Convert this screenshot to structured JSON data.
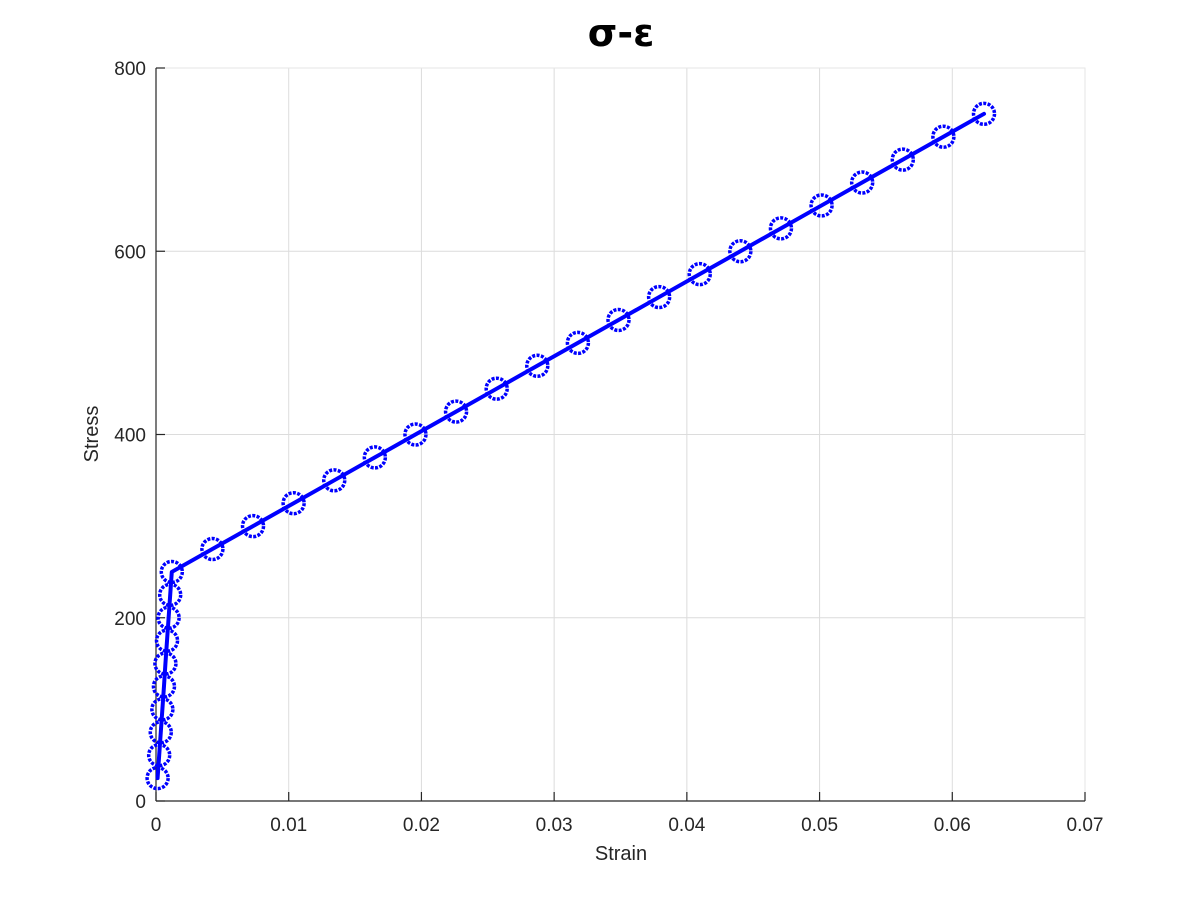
{
  "chart_data": {
    "type": "line",
    "title": "σ-ε",
    "xlabel": "Strain",
    "ylabel": "Stress",
    "xlim": [
      0,
      0.07
    ],
    "ylim": [
      0,
      800
    ],
    "xticks": [
      0,
      0.01,
      0.02,
      0.03,
      0.04,
      0.05,
      0.06,
      0.07
    ],
    "xtick_labels": [
      "0",
      "0.01",
      "0.02",
      "0.03",
      "0.04",
      "0.05",
      "0.06",
      "0.07"
    ],
    "yticks": [
      0,
      200,
      400,
      600,
      800
    ],
    "ytick_labels": [
      "0",
      "200",
      "400",
      "600",
      "800"
    ],
    "grid": true,
    "legend": "none",
    "series": [
      {
        "color": "#0000ff",
        "marker": "circle",
        "x": [
          0.00012,
          0.00024,
          0.00036,
          0.00048,
          0.0006,
          0.00071,
          0.00083,
          0.00095,
          0.00107,
          0.00119,
          0.00425,
          0.00731,
          0.01037,
          0.01343,
          0.01649,
          0.01955,
          0.02261,
          0.02567,
          0.02873,
          0.03179,
          0.03485,
          0.03791,
          0.04097,
          0.04403,
          0.04709,
          0.05015,
          0.05321,
          0.05627,
          0.05933,
          0.06239
        ],
        "y": [
          25,
          50,
          75,
          100,
          125,
          150,
          175,
          200,
          225,
          250,
          275,
          300,
          325,
          350,
          375,
          400,
          425,
          450,
          475,
          500,
          525,
          550,
          575,
          600,
          625,
          650,
          675,
          700,
          725,
          750
        ]
      }
    ]
  }
}
